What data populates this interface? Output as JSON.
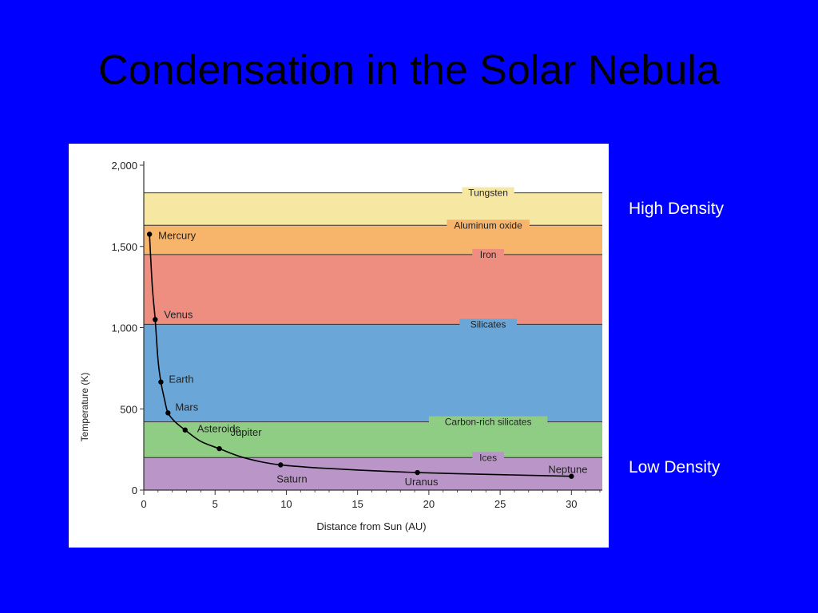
{
  "slide": {
    "title": "Condensation in the Solar Nebula",
    "high_label": "High Density",
    "low_label": "Low Density",
    "background": "#0000ff"
  },
  "chart_data": {
    "type": "line",
    "xlabel": "Distance from Sun (AU)",
    "ylabel": "Temperature (K)",
    "xlim": [
      0,
      32
    ],
    "ylim": [
      0,
      2000
    ],
    "xticks": [
      0,
      5,
      10,
      15,
      20,
      25,
      30
    ],
    "xtick_labels": [
      "0",
      "5",
      "10",
      "15",
      "20",
      "25",
      "30"
    ],
    "yticks": [
      0,
      500,
      1000,
      1500,
      2000
    ],
    "ytick_labels": [
      "0",
      "500",
      "1,000",
      "1,500",
      "2,000"
    ],
    "bands": [
      {
        "name": "Ices",
        "from": 0,
        "to": 200,
        "color": "#b995c8"
      },
      {
        "name": "Carbon-rich silicates",
        "from": 200,
        "to": 420,
        "color": "#8fcd84"
      },
      {
        "name": "Silicates",
        "from": 420,
        "to": 1020,
        "color": "#6aa6d8"
      },
      {
        "name": "Iron",
        "from": 1020,
        "to": 1450,
        "color": "#ee8e80"
      },
      {
        "name": "Aluminum oxide",
        "from": 1450,
        "to": 1630,
        "color": "#f7b46b"
      },
      {
        "name": "Tungsten",
        "from": 1630,
        "to": 1830,
        "color": "#f6e8a2"
      }
    ],
    "points": [
      {
        "name": "Mercury",
        "x": 0.4,
        "y": 1575
      },
      {
        "name": "Venus",
        "x": 0.8,
        "y": 1050
      },
      {
        "name": "Earth",
        "x": 1.2,
        "y": 665
      },
      {
        "name": "Mars",
        "x": 1.7,
        "y": 475
      },
      {
        "name": "Asteroids",
        "x": 2.9,
        "y": 370
      },
      {
        "name": "Jupiter",
        "x": 5.3,
        "y": 255
      },
      {
        "name": "Saturn",
        "x": 9.6,
        "y": 155
      },
      {
        "name": "Uranus",
        "x": 19.2,
        "y": 108
      },
      {
        "name": "Neptune",
        "x": 30.0,
        "y": 85
      }
    ],
    "curve": [
      [
        0.4,
        1575
      ],
      [
        0.6,
        1250
      ],
      [
        0.8,
        1050
      ],
      [
        1.0,
        800
      ],
      [
        1.2,
        665
      ],
      [
        1.45,
        560
      ],
      [
        1.7,
        475
      ],
      [
        2.2,
        420
      ],
      [
        2.9,
        370
      ],
      [
        4.0,
        300
      ],
      [
        5.3,
        255
      ],
      [
        7.0,
        200
      ],
      [
        9.6,
        155
      ],
      [
        14.0,
        128
      ],
      [
        19.2,
        108
      ],
      [
        25.0,
        95
      ],
      [
        30.0,
        85
      ]
    ]
  }
}
